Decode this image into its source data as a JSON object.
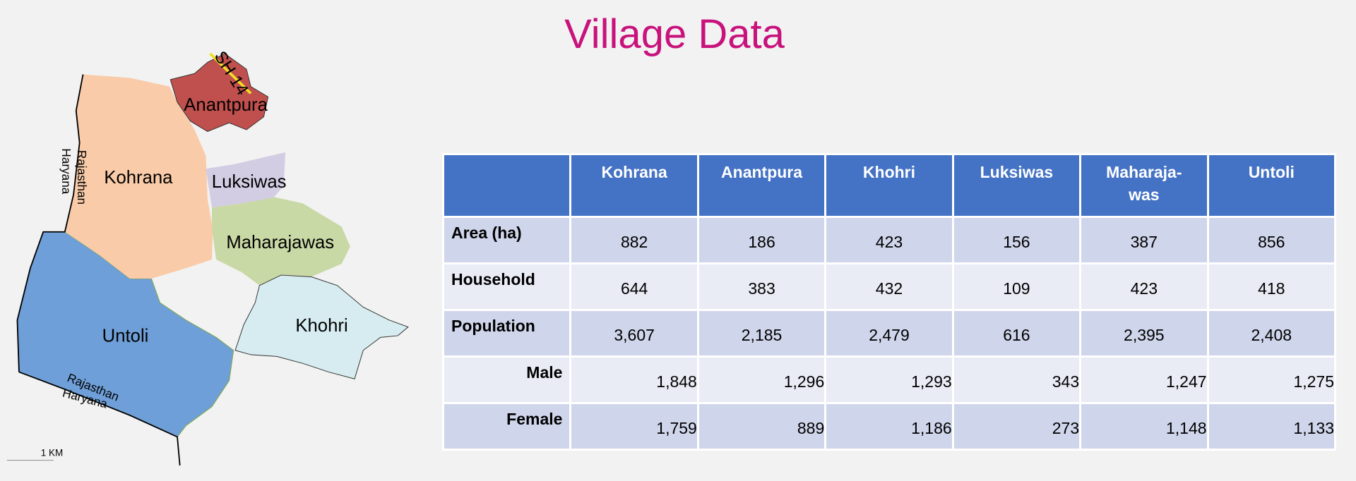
{
  "title": "Village Data",
  "map": {
    "regions": [
      "Kohrana",
      "Anantpura",
      "Luksiwas",
      "Maharajawas",
      "Khohri",
      "Untoli"
    ],
    "road": "SH 14",
    "border_west": {
      "upper": "Rajasthan",
      "lower": "Haryana"
    },
    "border_south": {
      "upper": "Rajasthan",
      "lower": "Haryana"
    },
    "scale": "1 KM"
  },
  "table": {
    "columns": [
      "Kohrana",
      "Anantpura",
      "Khohri",
      "Luksiwas",
      "Maharaja-\nwas",
      "Untoli"
    ],
    "rows": [
      {
        "label": "Area (ha)",
        "values": [
          "882",
          "186",
          "423",
          "156",
          "387",
          "856"
        ]
      },
      {
        "label": "Household",
        "values": [
          "644",
          "383",
          "432",
          "109",
          "423",
          "418"
        ]
      },
      {
        "label": "Population",
        "values": [
          "3,607",
          "2,185",
          "2,479",
          "616",
          "2,395",
          "2,408"
        ]
      },
      {
        "label": "Male",
        "values": [
          "1,848",
          "1,296",
          "1,293",
          "343",
          "1,247",
          "1,275"
        ]
      },
      {
        "label": "Female",
        "values": [
          "1,759",
          "889",
          "1,186",
          "273",
          "1,148",
          "1,133"
        ]
      }
    ]
  }
}
